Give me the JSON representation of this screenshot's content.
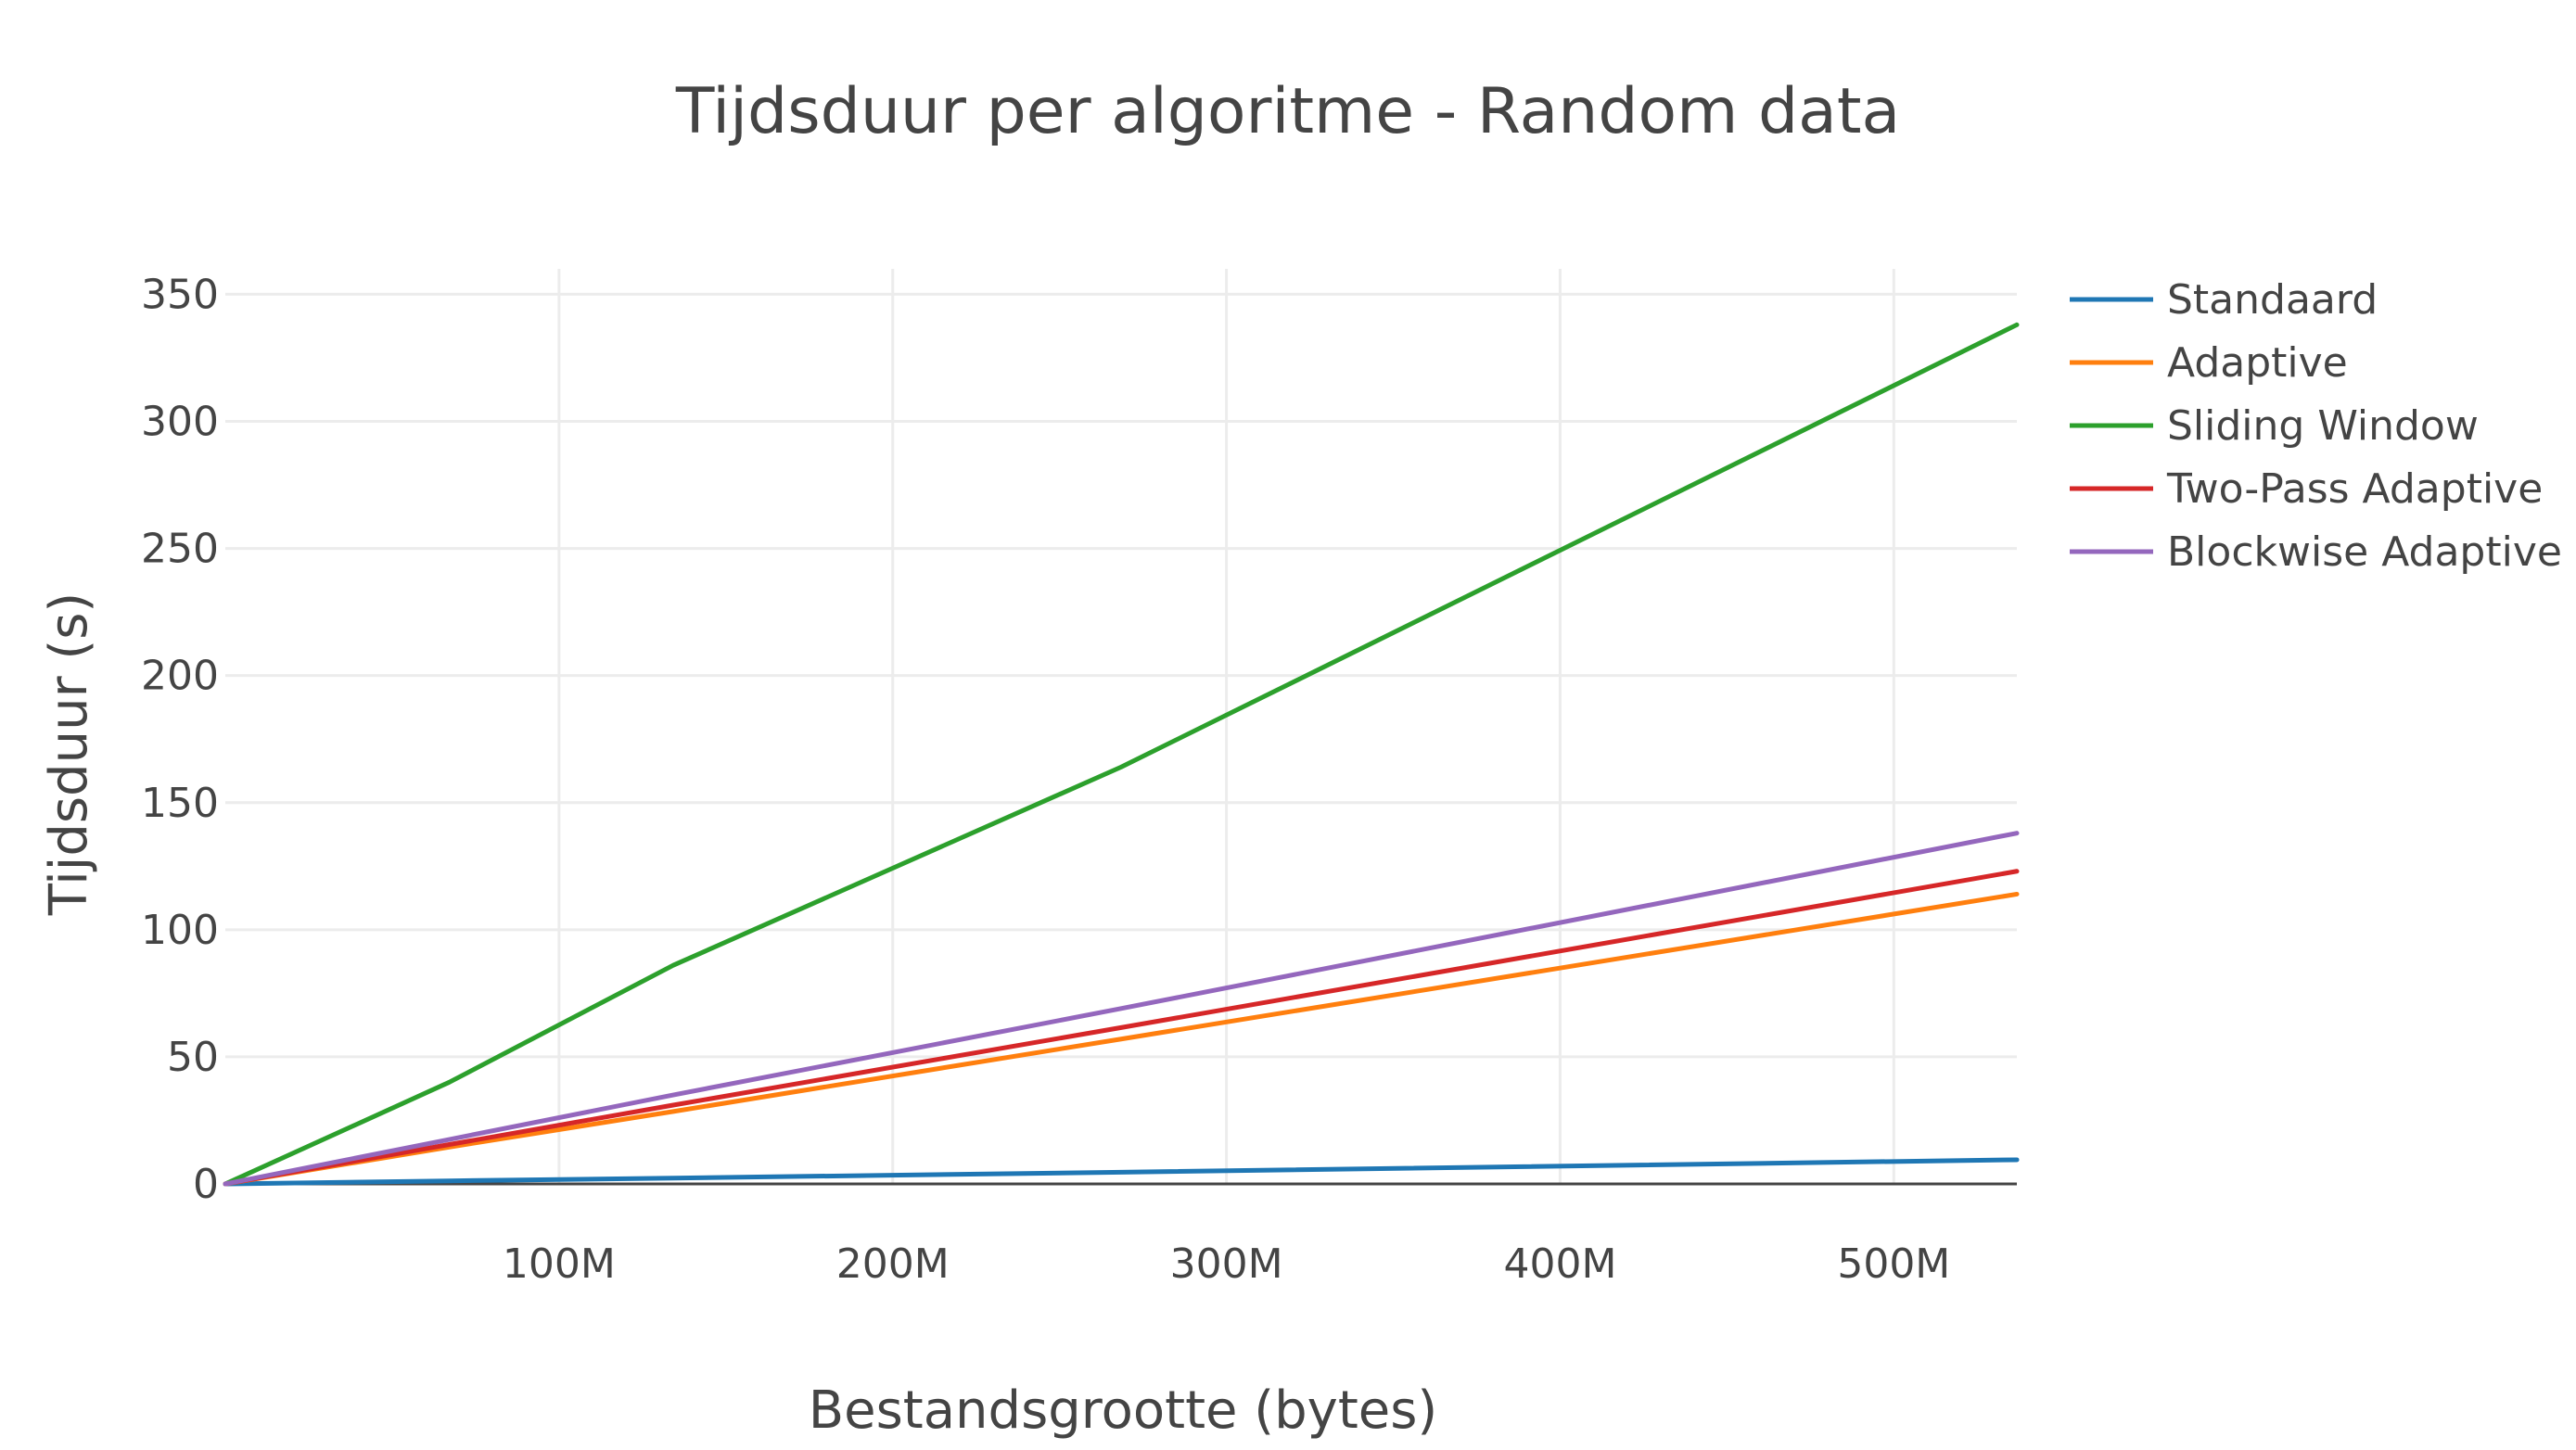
{
  "chart_data": {
    "type": "line",
    "title": "Tijdsduur per algoritme - Random data",
    "xlabel": "Bestandsgrootte (bytes)",
    "ylabel": "Tijdsduur (s)",
    "xlim": [
      0,
      536870912
    ],
    "ylim": [
      0,
      360
    ],
    "x_ticks": [
      {
        "value": 100000000,
        "label": "100M"
      },
      {
        "value": 200000000,
        "label": "200M"
      },
      {
        "value": 300000000,
        "label": "300M"
      },
      {
        "value": 400000000,
        "label": "400M"
      },
      {
        "value": 500000000,
        "label": "500M"
      }
    ],
    "y_ticks": [
      {
        "value": 0,
        "label": "0"
      },
      {
        "value": 50,
        "label": "50"
      },
      {
        "value": 100,
        "label": "100"
      },
      {
        "value": 150,
        "label": "150"
      },
      {
        "value": 200,
        "label": "200"
      },
      {
        "value": 250,
        "label": "250"
      },
      {
        "value": 300,
        "label": "300"
      },
      {
        "value": 350,
        "label": "350"
      }
    ],
    "grid": true,
    "legend_position": "top-right",
    "x": [
      0,
      67108864,
      134217728,
      268435456,
      536870912
    ],
    "series": [
      {
        "name": "Standaard",
        "color": "#1f77b4",
        "values": [
          0,
          1.2,
          2.3,
          4.6,
          9.5
        ]
      },
      {
        "name": "Adaptive",
        "color": "#ff7f0e",
        "values": [
          0,
          14.5,
          28.5,
          57,
          114
        ]
      },
      {
        "name": "Sliding Window",
        "color": "#2ca02c",
        "values": [
          0,
          40,
          86,
          164,
          338
        ]
      },
      {
        "name": "Two-Pass Adaptive",
        "color": "#d62728",
        "values": [
          0,
          15.5,
          31,
          61.5,
          123
        ]
      },
      {
        "name": "Blockwise Adaptive",
        "color": "#9467bd",
        "values": [
          0,
          17.5,
          35,
          69,
          138
        ]
      }
    ]
  }
}
